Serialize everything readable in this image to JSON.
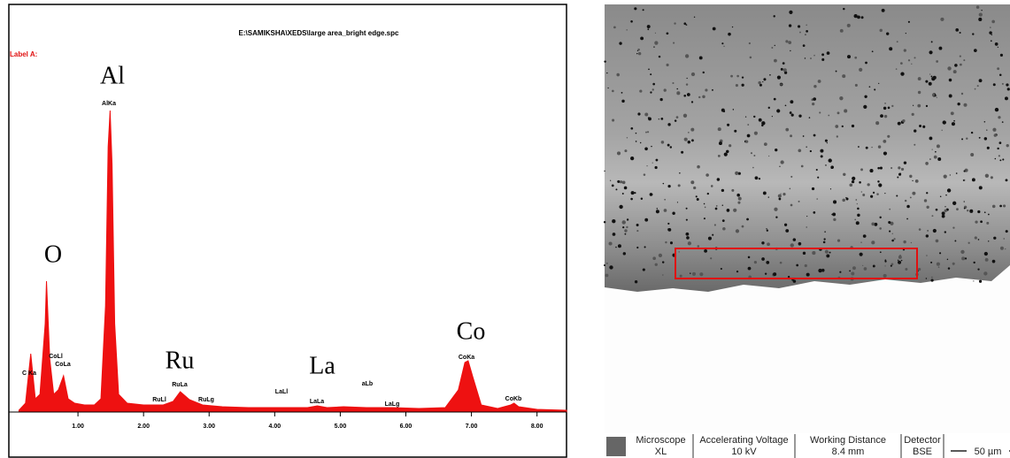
{
  "chart_data": {
    "type": "area",
    "title": "E:\\SAMIKSHA\\XEDS\\large area_bright edge.spc",
    "subtitle": "Label A:",
    "color": "#ee1111",
    "x": [
      0.1,
      0.2,
      0.28,
      0.35,
      0.42,
      0.5,
      0.52,
      0.57,
      0.63,
      0.7,
      0.78,
      0.85,
      0.95,
      1.1,
      1.25,
      1.35,
      1.42,
      1.46,
      1.49,
      1.52,
      1.56,
      1.62,
      1.75,
      2.0,
      2.3,
      2.45,
      2.56,
      2.7,
      2.9,
      3.2,
      3.6,
      4.0,
      4.5,
      4.65,
      4.8,
      5.05,
      5.4,
      5.8,
      6.2,
      6.6,
      6.8,
      6.9,
      6.95,
      7.02,
      7.15,
      7.4,
      7.6,
      7.65,
      7.72,
      8.0,
      8.45
    ],
    "values": [
      2,
      10,
      66,
      15,
      20,
      100,
      148,
      60,
      20,
      25,
      41,
      15,
      10,
      8,
      8,
      15,
      120,
      300,
      341,
      280,
      100,
      20,
      10,
      8,
      8,
      12,
      23,
      14,
      8,
      6,
      5,
      5,
      5,
      7,
      5,
      6,
      5,
      5,
      4,
      5,
      25,
      56,
      58,
      40,
      8,
      4,
      8,
      10,
      6,
      3,
      2
    ],
    "xlim": [
      0,
      8.45
    ],
    "xticks": [
      {
        "value": 1,
        "label": "1.00"
      },
      {
        "value": 2,
        "label": "2.00"
      },
      {
        "value": 3,
        "label": "3.00"
      },
      {
        "value": 4,
        "label": "4.00"
      },
      {
        "value": 5,
        "label": "5.00"
      },
      {
        "value": 6,
        "label": "6.00"
      },
      {
        "value": 7,
        "label": "7.00"
      },
      {
        "value": 8,
        "label": "8.00"
      }
    ],
    "annotations": [
      "Al",
      "O",
      "Co",
      "Ru",
      "La",
      "C Ka",
      "CoLl",
      "CoLa",
      "AlKa",
      "RuLa",
      "RuLl",
      "RuLg",
      "LaLl",
      "LaLa",
      "aLb",
      "LaLg",
      "CoKa",
      "CoKb"
    ]
  },
  "image_info": {
    "fields": [
      {
        "label": "Microscope",
        "value": "XL"
      },
      {
        "label": "Accelerating Voltage",
        "value": "10 kV"
      },
      {
        "label": "Working Distance",
        "value": "8.4 mm"
      },
      {
        "label": "Detector",
        "value": "BSE"
      }
    ],
    "scale_bar": "50 µm"
  }
}
